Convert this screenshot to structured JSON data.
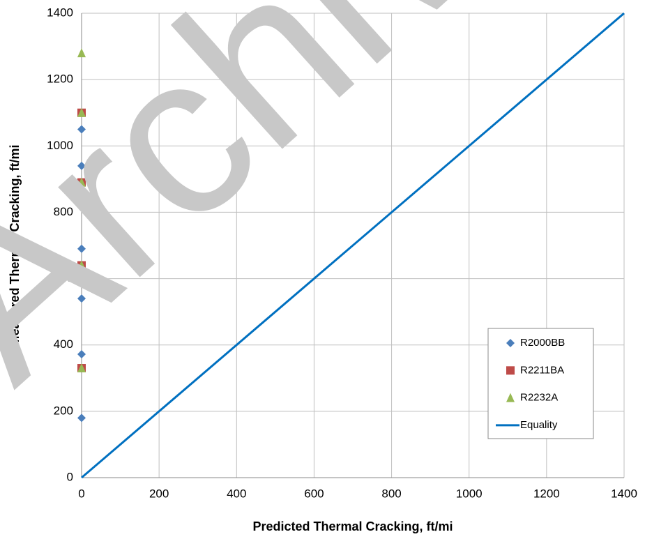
{
  "chart_data": {
    "type": "scatter",
    "xlabel": "Predicted Thermal Cracking, ft/mi",
    "ylabel": "Measured Thermal Cracking, ft/mi",
    "xlim": [
      0,
      1400
    ],
    "xticks": [
      0,
      200,
      400,
      600,
      800,
      1000,
      1200,
      1400
    ],
    "ylim": [
      0,
      1400
    ],
    "yticks": [
      0,
      200,
      400,
      600,
      800,
      1000,
      1200,
      1400
    ],
    "grid": true,
    "legend": "lower-right",
    "watermark": "Archived",
    "series": [
      {
        "name": "R2000BB",
        "kind": "marker",
        "marker": "diamond",
        "color": "#4a7ebb",
        "x": [
          0,
          0,
          0,
          0,
          0,
          0,
          0
        ],
        "values": [
          180,
          372,
          540,
          690,
          820,
          940,
          1050
        ]
      },
      {
        "name": "R2211BA",
        "kind": "marker",
        "marker": "square",
        "color": "#be4b48",
        "x": [
          0,
          0,
          0,
          0
        ],
        "values": [
          330,
          640,
          890,
          1100
        ]
      },
      {
        "name": "R2232A",
        "kind": "marker",
        "marker": "triangle",
        "color": "#98b954",
        "x": [
          0,
          0,
          0,
          0,
          0
        ],
        "values": [
          330,
          640,
          890,
          1100,
          1280
        ]
      },
      {
        "name": "Equality",
        "kind": "line",
        "color": "#0070c0",
        "x": [
          0,
          1400
        ],
        "values": [
          0,
          1400
        ]
      }
    ]
  }
}
